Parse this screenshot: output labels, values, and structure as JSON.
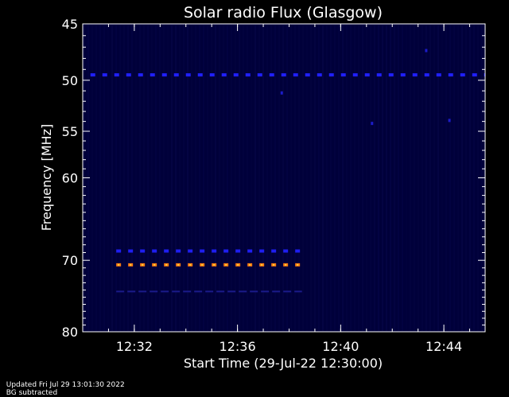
{
  "chart_data": {
    "type": "heatmap",
    "title": "Solar radio Flux (Glasgow)",
    "xlabel": "Start Time (29-Jul-22 12:30:00)",
    "ylabel": "Frequency [MHz]",
    "x_unit": "minutes after 12:30:00",
    "xlim": [
      0,
      15.6
    ],
    "ylim": [
      45,
      80
    ],
    "y_scale": "log",
    "x_ticks": [
      "12:32",
      "12:36",
      "12:40",
      "12:44"
    ],
    "y_ticks": [
      45,
      50,
      55,
      60,
      70,
      80
    ],
    "background": "#00003a",
    "features": [
      {
        "freq": 49.5,
        "t_start": 0.3,
        "t_end": 15.6,
        "color": "#2020ff"
      },
      {
        "freq": 68.8,
        "t_start": 1.3,
        "t_end": 8.5,
        "color": "#1e1ef0"
      },
      {
        "freq": 70.6,
        "t_start": 1.3,
        "t_end": 8.5,
        "color": "#ff7a10"
      },
      {
        "freq": 74.2,
        "t_start": 1.3,
        "t_end": 8.5,
        "color": "#1a1a8a"
      }
    ]
  },
  "footer": {
    "updated": "Updated Fri Jul 29 13:01:30 2022",
    "note": "BG subtracted"
  }
}
